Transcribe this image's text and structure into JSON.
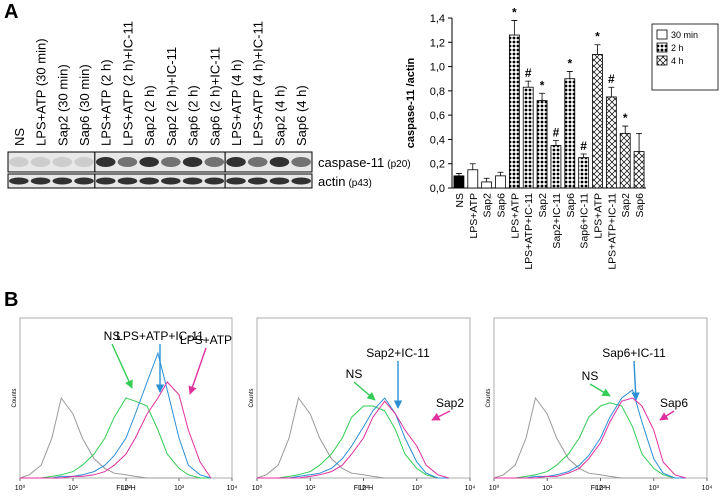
{
  "panels": [
    "A",
    "B"
  ],
  "blot": {
    "lanes": [
      "NS",
      "LPS+ATP (30 min)",
      "Sap2 (30 min)",
      "Sap6 (30 min)",
      "LPS+ATP (2 h)",
      "LPS+ATP (2 h)+IC-11",
      "Sap2 (2 h)",
      "Sap2 (2 h)+IC-11",
      "Sap6 (2 h)",
      "Sap6 (2 h)+IC-11",
      "LPS+ATP (4 h)",
      "LPS+ATP (4 h)+IC-11",
      "Sap2 (4 h)",
      "Sap6 (4 h)"
    ],
    "bands": [
      {
        "name": "caspase-11",
        "size": "(p20)"
      },
      {
        "name": "actin",
        "size": "(p43)"
      }
    ]
  },
  "chart_data": [
    {
      "type": "bar",
      "ylabel": "caspase-11 /actin",
      "categories": [
        "NS",
        "LPS+ATP",
        "Sap2",
        "Sap6",
        "LPS+ATP",
        "LPS+ATP+IC-11",
        "Sap2",
        "Sap2+IC-11",
        "Sap6",
        "Sap6+IC-11",
        "LPS+ATP",
        "LPS+ATP+IC-11",
        "Sap2",
        "Sap6"
      ],
      "values": [
        0.1,
        0.15,
        0.05,
        0.1,
        1.26,
        0.83,
        0.72,
        0.35,
        0.9,
        0.25,
        1.1,
        0.75,
        0.45,
        0.3
      ],
      "errors": [
        0.02,
        0.05,
        0.03,
        0.03,
        0.12,
        0.05,
        0.06,
        0.04,
        0.06,
        0.03,
        0.08,
        0.08,
        0.06,
        0.15
      ],
      "markers": [
        null,
        null,
        null,
        null,
        "*",
        "#",
        "*",
        "#",
        "*",
        "#",
        "*",
        "#",
        "*",
        null
      ],
      "styles": [
        "solid",
        "open",
        "open",
        "open",
        "dots",
        "dots",
        "dots",
        "dots",
        "dots",
        "dots",
        "cross",
        "cross",
        "cross",
        "cross"
      ],
      "legend": [
        {
          "name": "30 min",
          "style": "open"
        },
        {
          "name": "2 h",
          "style": "dots"
        },
        {
          "name": "4 h",
          "style": "cross"
        }
      ],
      "ylim": [
        0,
        1.4
      ],
      "yticks": [
        {
          "value": 0,
          "label": "0,0"
        },
        {
          "value": 0.2,
          "label": "0,2"
        },
        {
          "value": 0.4,
          "label": "0,4"
        },
        {
          "value": 0.6,
          "label": "0,6"
        },
        {
          "value": 0.8,
          "label": "0,8"
        },
        {
          "value": 1.0,
          "label": "1,0"
        },
        {
          "value": 1.2,
          "label": "1,2"
        },
        {
          "value": 1.4,
          "label": "1,4"
        }
      ]
    },
    {
      "type": "line",
      "xlabel": "FL2-H",
      "ylabel": "Counts",
      "log_x": true,
      "xlim": [
        1,
        10000
      ],
      "xticks": [
        {
          "value": 1,
          "label": "10⁰"
        },
        {
          "value": 10,
          "label": "10¹"
        },
        {
          "value": 100,
          "label": "10²"
        },
        {
          "value": 1000,
          "label": "10³"
        },
        {
          "value": 10000,
          "label": "10⁴"
        }
      ],
      "ylim": [
        0,
        100
      ],
      "x": [
        1,
        1.5,
        2.5,
        4,
        6,
        10,
        15,
        25,
        40,
        60,
        100,
        150,
        250,
        400,
        600,
        1000,
        1500,
        2500,
        4000
      ],
      "series": [
        {
          "color": "#999999",
          "values": [
            0,
            2,
            8,
            25,
            50,
            40,
            25,
            12,
            6,
            3,
            2,
            1,
            0,
            0,
            0,
            0,
            0,
            0,
            0
          ]
        },
        {
          "name": "NS",
          "color": "#33cc55",
          "values": [
            0,
            0,
            0,
            1,
            2,
            4,
            8,
            15,
            25,
            38,
            50,
            48,
            45,
            30,
            15,
            6,
            2,
            0,
            0
          ]
        },
        {
          "name": "LPS+ATP+IC-11",
          "color": "#2a8fd6",
          "values": [
            0,
            0,
            0,
            0,
            1,
            1,
            2,
            4,
            8,
            14,
            25,
            40,
            60,
            78,
            55,
            25,
            8,
            2,
            0
          ]
        },
        {
          "name": "LPS+ATP",
          "color": "#e0309e",
          "values": [
            0,
            0,
            0,
            0,
            0,
            1,
            1,
            2,
            4,
            8,
            15,
            25,
            40,
            50,
            60,
            52,
            30,
            10,
            0
          ]
        }
      ]
    },
    {
      "type": "line",
      "xlabel": "FL2-H",
      "ylabel": "Counts",
      "log_x": true,
      "xlim": [
        1,
        10000
      ],
      "xticks": [
        {
          "value": 1,
          "label": "10⁰"
        },
        {
          "value": 10,
          "label": "10¹"
        },
        {
          "value": 100,
          "label": "10²"
        },
        {
          "value": 1000,
          "label": "10³"
        },
        {
          "value": 10000,
          "label": "10⁴"
        }
      ],
      "ylim": [
        0,
        100
      ],
      "x": [
        1,
        1.5,
        2.5,
        4,
        6,
        10,
        15,
        25,
        40,
        60,
        100,
        150,
        250,
        400,
        600,
        1000,
        1500,
        2500,
        4000
      ],
      "series": [
        {
          "color": "#999999",
          "values": [
            0,
            2,
            8,
            25,
            50,
            40,
            25,
            12,
            6,
            3,
            2,
            1,
            0,
            0,
            0,
            0,
            0,
            0,
            0
          ]
        },
        {
          "name": "NS",
          "color": "#33cc55",
          "values": [
            0,
            0,
            0,
            1,
            2,
            4,
            8,
            15,
            25,
            38,
            45,
            45,
            42,
            30,
            15,
            6,
            2,
            0,
            0
          ]
        },
        {
          "name": "Sap2+IC-11",
          "color": "#2a8fd6",
          "values": [
            0,
            0,
            0,
            0,
            1,
            2,
            3,
            6,
            12,
            20,
            32,
            42,
            50,
            40,
            25,
            10,
            3,
            0,
            0
          ]
        },
        {
          "name": "Sap2",
          "color": "#e0309e",
          "values": [
            0,
            0,
            0,
            0,
            0,
            1,
            2,
            4,
            8,
            15,
            25,
            38,
            48,
            40,
            30,
            20,
            8,
            2,
            0
          ]
        }
      ]
    },
    {
      "type": "line",
      "xlabel": "FL2-H",
      "ylabel": "Counts",
      "log_x": true,
      "xlim": [
        1,
        10000
      ],
      "xticks": [
        {
          "value": 1,
          "label": "10⁰"
        },
        {
          "value": 10,
          "label": "10¹"
        },
        {
          "value": 100,
          "label": "10²"
        },
        {
          "value": 1000,
          "label": "10³"
        },
        {
          "value": 10000,
          "label": "10⁴"
        }
      ],
      "ylim": [
        0,
        100
      ],
      "x": [
        1,
        1.5,
        2.5,
        4,
        6,
        10,
        15,
        25,
        40,
        60,
        100,
        150,
        250,
        400,
        600,
        1000,
        1500,
        2500,
        4000
      ],
      "series": [
        {
          "color": "#999999",
          "values": [
            0,
            2,
            8,
            25,
            50,
            40,
            25,
            12,
            6,
            3,
            2,
            1,
            0,
            0,
            0,
            0,
            0,
            0,
            0
          ]
        },
        {
          "name": "NS",
          "color": "#33cc55",
          "values": [
            0,
            0,
            0,
            1,
            2,
            4,
            8,
            15,
            25,
            38,
            45,
            47,
            45,
            32,
            15,
            6,
            2,
            0,
            0
          ]
        },
        {
          "name": "Sap6+IC-11",
          "color": "#2a8fd6",
          "values": [
            0,
            0,
            0,
            0,
            1,
            1,
            2,
            4,
            8,
            14,
            25,
            38,
            50,
            55,
            35,
            12,
            3,
            0,
            0
          ]
        },
        {
          "name": "Sap6",
          "color": "#e0309e",
          "values": [
            0,
            0,
            0,
            0,
            0,
            1,
            1,
            3,
            6,
            12,
            22,
            35,
            48,
            50,
            45,
            30,
            10,
            2,
            0
          ]
        }
      ]
    }
  ]
}
